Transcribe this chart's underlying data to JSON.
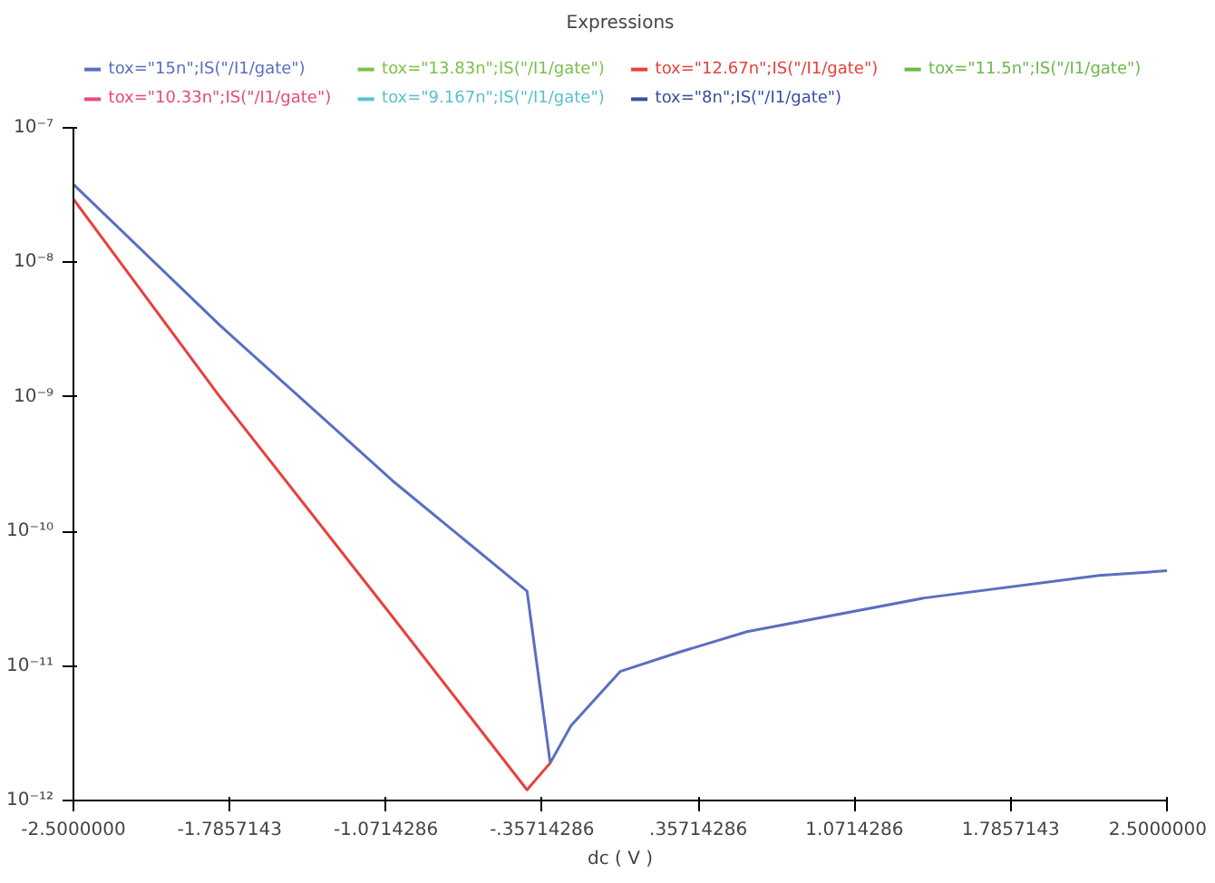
{
  "chart_data": {
    "type": "line",
    "title": "Expressions",
    "xlabel": "dc ( V )",
    "x": [
      -2.5,
      -1.83,
      -1.03,
      -0.426,
      -0.32,
      -0.225,
      0.0,
      0.265,
      0.58,
      1.39,
      2.19,
      2.5
    ],
    "series": [
      {
        "name": "tox=\"15n\";IS(\"/I1/gate\")",
        "color": "#5a6fc0",
        "values": [
          3.8e-08,
          3.4e-09,
          2.3e-10,
          3.6e-11,
          1.9e-12,
          3.6e-12,
          9.1e-12,
          1.26e-11,
          1.8e-11,
          3.2e-11,
          4.7e-11,
          5.1e-11
        ]
      },
      {
        "name": "tox=\"13.83n\";IS(\"/I1/gate\")",
        "color": "#7cc04a",
        "values": [
          null,
          null,
          null,
          null,
          null,
          null,
          null,
          null,
          null,
          null,
          null,
          null
        ]
      },
      {
        "name": "tox=\"12.67n\";IS(\"/I1/gate\")",
        "color": "#e8403c",
        "values": [
          2.95e-08,
          1e-09,
          2.2e-11,
          1.2e-12,
          1.9e-12,
          null,
          null,
          null,
          null,
          null,
          null,
          null
        ]
      },
      {
        "name": "tox=\"11.5n\";IS(\"/I1/gate\")",
        "color": "#6cb84a",
        "values": [
          null,
          null,
          null,
          null,
          null,
          null,
          null,
          null,
          null,
          null,
          null,
          null
        ]
      },
      {
        "name": "tox=\"10.33n\";IS(\"/I1/gate\")",
        "color": "#e84a7c",
        "values": [
          null,
          null,
          null,
          null,
          null,
          null,
          null,
          null,
          null,
          null,
          null,
          null
        ]
      },
      {
        "name": "tox=\"9.167n\";IS(\"/I1/gate\")",
        "color": "#5ac0d0",
        "values": [
          null,
          null,
          null,
          null,
          null,
          null,
          null,
          null,
          null,
          null,
          null,
          null
        ]
      },
      {
        "name": "tox=\"8n\";IS(\"/I1/gate\")",
        "color": "#3a4ea0",
        "values": [
          null,
          null,
          null,
          null,
          null,
          null,
          null,
          null,
          null,
          null,
          null,
          null
        ]
      }
    ],
    "log": "y",
    "grid": false,
    "legend": "top",
    "xlim": [
      -2.5,
      2.5
    ],
    "xticks": [
      {
        "value": -2.5,
        "label": "-2.5000000"
      },
      {
        "value": -1.7857143,
        "label": "-1.7857143"
      },
      {
        "value": -1.0714286,
        "label": "-1.0714286"
      },
      {
        "value": -0.35714286,
        "label": "-.35714286"
      },
      {
        "value": 0.35714286,
        "label": ".35714286"
      },
      {
        "value": 1.0714286,
        "label": "1.0714286"
      },
      {
        "value": 1.7857143,
        "label": "1.7857143"
      },
      {
        "value": 2.5,
        "label": "2.5000000"
      }
    ],
    "ylim": [
      1e-12,
      1e-07
    ],
    "yticks": [
      {
        "value": 1e-12,
        "label": "10⁻¹²"
      },
      {
        "value": 1e-11,
        "label": "10⁻¹¹"
      },
      {
        "value": 1e-10,
        "label": "10⁻¹⁰"
      },
      {
        "value": 1e-09,
        "label": "10⁻⁹"
      },
      {
        "value": 1e-08,
        "label": "10⁻⁸"
      },
      {
        "value": 1e-07,
        "label": "10⁻⁷"
      }
    ]
  }
}
